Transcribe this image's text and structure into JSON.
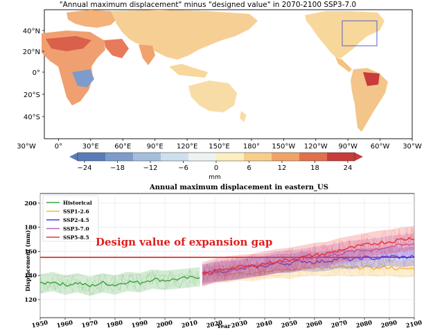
{
  "map": {
    "title": "\"Annual maximum displacement\" minus \"designed value\" in 2070-2100 SSP3-7.0",
    "lat_ticks": [
      "40°N",
      "20°N",
      "0°",
      "20°S",
      "40°S"
    ],
    "lon_ticks": [
      "30°W",
      "0°",
      "30°E",
      "60°E",
      "90°E",
      "120°E",
      "150°E",
      "180°",
      "150°W",
      "120°W",
      "90°W",
      "60°W",
      "30°W"
    ],
    "colorbar": {
      "ticks": [
        "−24",
        "−18",
        "−12",
        "−6",
        "0",
        "6",
        "12",
        "18",
        "24"
      ],
      "unit": "mm",
      "colors": [
        "#5a7bb7",
        "#7d9ccb",
        "#a4bedc",
        "#cfe0ec",
        "#eef3f1",
        "#fbeec0",
        "#f7cf8a",
        "#f0a368",
        "#e0714c",
        "#c83c3c"
      ]
    },
    "region_box_color": "#5560c8"
  },
  "chart_data": {
    "type": "line",
    "title": "Annual maximum displacement in eastern_US",
    "xlabel": "Year",
    "ylabel": "Displacement (mm)",
    "xlim": [
      1950,
      2100
    ],
    "ylim": [
      105,
      208
    ],
    "xticks": [
      1950,
      1960,
      1970,
      1980,
      1990,
      2000,
      2010,
      2020,
      2030,
      2040,
      2050,
      2060,
      2070,
      2080,
      2090,
      2100
    ],
    "yticks": [
      120,
      140,
      160,
      180,
      200
    ],
    "legend_position": "top-left",
    "annotation": "Design value of expansion gap",
    "design_value": 155,
    "series": [
      {
        "name": "Historical",
        "color": "#3aa33a",
        "x": [
          1950,
          1955,
          1960,
          1965,
          1970,
          1975,
          1980,
          1985,
          1990,
          1995,
          2000,
          2005,
          2010,
          2014
        ],
        "y": [
          133,
          135,
          132,
          134,
          131,
          134,
          132,
          135,
          134,
          137,
          136,
          137,
          138,
          139
        ],
        "band": 8
      },
      {
        "name": "SSP1-2.6",
        "color": "#f5b43c",
        "x": [
          2015,
          2020,
          2025,
          2030,
          2035,
          2040,
          2045,
          2050,
          2055,
          2060,
          2065,
          2070,
          2075,
          2080,
          2085,
          2090,
          2095,
          2100
        ],
        "y": [
          140,
          142,
          141,
          143,
          142,
          144,
          145,
          144,
          146,
          147,
          146,
          147,
          146,
          147,
          146,
          147,
          145,
          146
        ],
        "band": 7
      },
      {
        "name": "SSP2-4.5",
        "color": "#3c3ce6",
        "x": [
          2015,
          2020,
          2025,
          2030,
          2035,
          2040,
          2045,
          2050,
          2055,
          2060,
          2065,
          2070,
          2075,
          2080,
          2085,
          2090,
          2095,
          2100
        ],
        "y": [
          141,
          143,
          144,
          145,
          147,
          148,
          150,
          150,
          152,
          151,
          152,
          154,
          153,
          155,
          154,
          156,
          155,
          156
        ],
        "band": 8
      },
      {
        "name": "SSP3-7.0",
        "color": "#b060c8",
        "x": [
          2015,
          2020,
          2025,
          2030,
          2035,
          2040,
          2045,
          2050,
          2055,
          2060,
          2065,
          2070,
          2075,
          2080,
          2085,
          2090,
          2095,
          2100
        ],
        "y": [
          140,
          143,
          144,
          146,
          148,
          149,
          151,
          152,
          153,
          155,
          156,
          158,
          160,
          161,
          162,
          164,
          165,
          166
        ],
        "band": 9
      },
      {
        "name": "SSP5-8.5",
        "color": "#e83030",
        "x": [
          2015,
          2020,
          2025,
          2030,
          2035,
          2040,
          2045,
          2050,
          2055,
          2060,
          2065,
          2070,
          2075,
          2080,
          2085,
          2090,
          2095,
          2100
        ],
        "y": [
          141,
          144,
          146,
          147,
          148,
          150,
          152,
          153,
          155,
          157,
          158,
          161,
          163,
          165,
          167,
          168,
          170,
          171
        ],
        "band": 10
      }
    ]
  }
}
